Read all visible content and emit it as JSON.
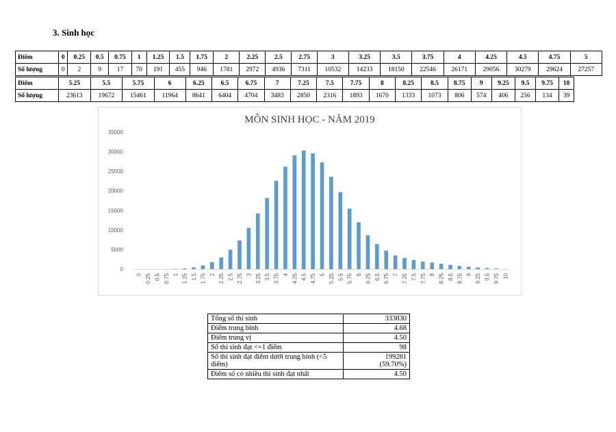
{
  "section_title": "3.  Sinh học",
  "table_rows": [
    {
      "label": "Điểm",
      "cells": [
        "0",
        "0.25",
        "0.5",
        "0.75",
        "1",
        "1.25",
        "1.5",
        "1.75",
        "2",
        "2.25",
        "2.5",
        "2.75",
        "3",
        "3.25",
        "3.5",
        "3.75",
        "4",
        "4.25",
        "4.5",
        "4.75",
        "5"
      ],
      "head": true
    },
    {
      "label": "Số lượng",
      "cells": [
        "0",
        "2",
        "9",
        "17",
        "70",
        "191",
        "455",
        "946",
        "1781",
        "2972",
        "4936",
        "7311",
        "10532",
        "14233",
        "18150",
        "22546",
        "26171",
        "29056",
        "30279",
        "29624",
        "27257"
      ],
      "head": false
    },
    {
      "label": "Điểm",
      "cells": [
        "5.25",
        "5.5",
        "5.75",
        "6",
        "6.25",
        "6.5",
        "6.75",
        "7",
        "7.25",
        "7.5",
        "7.75",
        "8",
        "8.25",
        "8.5",
        "8.75",
        "9",
        "9.25",
        "9.5",
        "9.75",
        "10"
      ],
      "head": true
    },
    {
      "label": "Số lượng",
      "cells": [
        "23613",
        "19672",
        "15461",
        "11964",
        "8641",
        "6404",
        "4704",
        "3483",
        "2850",
        "2316",
        "1893",
        "1670",
        "1333",
        "1073",
        "806",
        "574",
        "406",
        "256",
        "134",
        "39"
      ],
      "head": false
    }
  ],
  "chart_data": {
    "type": "bar",
    "title": "MÔN SINH HỌC - NĂM 2019",
    "xlabel": "",
    "ylabel": "",
    "ylim": [
      0,
      35000
    ],
    "yticks": [
      "0",
      "5000",
      "10000",
      "15000",
      "20000",
      "25000",
      "30000",
      "35000"
    ],
    "grid": false,
    "bar_color": "#5b9bd5",
    "categories": [
      "0",
      "0.25",
      "0.5",
      "0.75",
      "1",
      "1.25",
      "1.5",
      "1.75",
      "2",
      "2.25",
      "2.5",
      "2.75",
      "3",
      "3.25",
      "3.5",
      "3.75",
      "4",
      "4.25",
      "4.5",
      "4.75",
      "5",
      "5.25",
      "5.5",
      "5.75",
      "6",
      "6.25",
      "6.5",
      "6.75",
      "7",
      "7.25",
      "7.5",
      "7.75",
      "8",
      "8.25",
      "8.5",
      "8.75",
      "9",
      "9.25",
      "9.5",
      "9.75",
      "10"
    ],
    "values": [
      0,
      2,
      9,
      17,
      70,
      191,
      455,
      946,
      1781,
      2972,
      4936,
      7311,
      10532,
      14233,
      18150,
      22546,
      26171,
      29056,
      30279,
      29624,
      27257,
      23613,
      19672,
      15461,
      11964,
      8641,
      6404,
      4704,
      3483,
      2850,
      2316,
      1893,
      1670,
      1333,
      1073,
      806,
      574,
      406,
      256,
      134,
      39
    ]
  },
  "stats": [
    {
      "label": "Tổng số thí sinh",
      "value": "333830"
    },
    {
      "label": "Điểm trung bình",
      "value": "4.68"
    },
    {
      "label": "Điểm trung vị",
      "value": "4.50"
    },
    {
      "label": "Số thí sinh đạt <=1 điểm",
      "value": "98"
    },
    {
      "label": "Số thí sinh đạt điểm dưới trung bình (<5 điểm)",
      "value": "199281",
      "value2": "(59.70%)"
    },
    {
      "label": "Điểm số có nhiều thí sinh đạt nhất",
      "value": "4.50"
    }
  ]
}
